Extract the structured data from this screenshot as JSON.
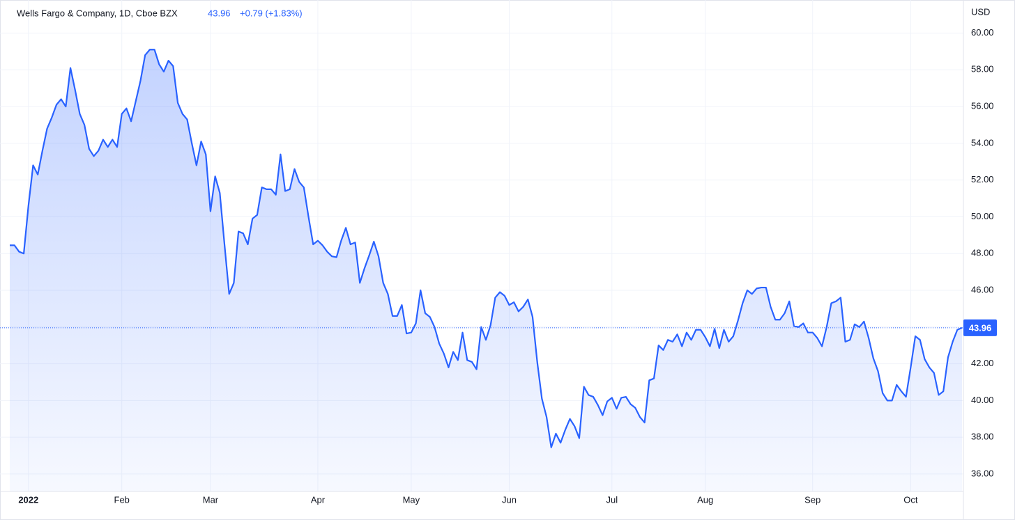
{
  "header": {
    "symbol": "Wells Fargo & Company, 1D, Cboe BZX",
    "price": "43.96",
    "change": "+0.79 (+1.83%)"
  },
  "chart_data": {
    "type": "area",
    "currency": "USD",
    "color": "#2962ff",
    "grid": true,
    "price_line_label": "43.96",
    "ylim": [
      35.05,
      61.8
    ],
    "yticks": [
      {
        "value": 36,
        "label": "36.00"
      },
      {
        "value": 38,
        "label": "38.00"
      },
      {
        "value": 40,
        "label": "40.00"
      },
      {
        "value": 42,
        "label": "42.00"
      },
      {
        "value": 44,
        "label": "44.00"
      },
      {
        "value": 46,
        "label": "46.00"
      },
      {
        "value": 48,
        "label": "48.00"
      },
      {
        "value": 50,
        "label": "50.00"
      },
      {
        "value": 52,
        "label": "52.00"
      },
      {
        "value": 54,
        "label": "54.00"
      },
      {
        "value": 56,
        "label": "56.00"
      },
      {
        "value": 58,
        "label": "58.00"
      },
      {
        "value": 60,
        "label": "60.00"
      }
    ],
    "categories": [
      null,
      null,
      null,
      null,
      "2022",
      null,
      null,
      null,
      null,
      null,
      null,
      null,
      null,
      null,
      null,
      null,
      null,
      null,
      null,
      null,
      null,
      null,
      null,
      null,
      "Feb",
      null,
      null,
      null,
      null,
      null,
      null,
      null,
      null,
      null,
      null,
      null,
      null,
      null,
      null,
      null,
      null,
      null,
      null,
      "Mar",
      null,
      null,
      null,
      null,
      null,
      null,
      null,
      null,
      null,
      null,
      null,
      null,
      null,
      null,
      null,
      null,
      null,
      null,
      null,
      null,
      null,
      null,
      "Apr",
      null,
      null,
      null,
      null,
      null,
      null,
      null,
      null,
      null,
      null,
      null,
      null,
      null,
      null,
      null,
      null,
      null,
      null,
      null,
      "May",
      null,
      null,
      null,
      null,
      null,
      null,
      null,
      null,
      null,
      null,
      null,
      null,
      null,
      null,
      null,
      null,
      null,
      null,
      null,
      null,
      "Jun",
      null,
      null,
      null,
      null,
      null,
      null,
      null,
      null,
      null,
      null,
      null,
      null,
      null,
      null,
      null,
      null,
      null,
      null,
      null,
      null,
      null,
      "Jul",
      null,
      null,
      null,
      null,
      null,
      null,
      null,
      null,
      null,
      null,
      null,
      null,
      null,
      null,
      null,
      null,
      null,
      null,
      null,
      "Aug",
      null,
      null,
      null,
      null,
      null,
      null,
      null,
      null,
      null,
      null,
      null,
      null,
      null,
      null,
      null,
      null,
      null,
      null,
      null,
      null,
      null,
      null,
      "Sep",
      null,
      null,
      null,
      null,
      null,
      null,
      null,
      null,
      null,
      null,
      null,
      null,
      null,
      null,
      null,
      null,
      null,
      null,
      null,
      null,
      "Oct",
      null,
      null,
      null,
      null,
      null,
      null,
      null,
      null,
      null,
      null,
      null
    ],
    "values": [
      48.45,
      48.45,
      48.1,
      48.0,
      50.6,
      52.8,
      52.3,
      53.6,
      54.8,
      55.4,
      56.1,
      56.4,
      56.0,
      58.1,
      56.9,
      55.6,
      55.0,
      53.7,
      53.3,
      53.6,
      54.2,
      53.8,
      54.2,
      53.8,
      55.6,
      55.9,
      55.2,
      56.3,
      57.4,
      58.8,
      59.1,
      59.1,
      58.3,
      57.9,
      58.5,
      58.2,
      56.2,
      55.6,
      55.3,
      54.0,
      52.8,
      54.1,
      53.4,
      50.3,
      52.2,
      51.3,
      48.5,
      45.8,
      46.4,
      49.2,
      49.1,
      48.5,
      49.9,
      50.1,
      51.6,
      51.5,
      51.5,
      51.2,
      53.4,
      51.4,
      51.5,
      52.6,
      51.9,
      51.6,
      50.0,
      48.5,
      48.7,
      48.45,
      48.1,
      47.85,
      47.8,
      48.7,
      49.4,
      48.5,
      48.6,
      46.4,
      47.2,
      47.9,
      48.65,
      47.85,
      46.4,
      45.8,
      44.6,
      44.6,
      45.2,
      43.65,
      43.7,
      44.2,
      46.0,
      44.75,
      44.55,
      44.0,
      43.1,
      42.55,
      41.8,
      42.65,
      42.2,
      43.7,
      42.2,
      42.1,
      41.7,
      44.0,
      43.3,
      44.1,
      45.6,
      45.9,
      45.7,
      45.2,
      45.35,
      44.85,
      45.1,
      45.5,
      44.55,
      42.1,
      40.1,
      39.1,
      37.45,
      38.2,
      37.7,
      38.4,
      39.0,
      38.6,
      37.95,
      40.75,
      40.3,
      40.2,
      39.75,
      39.2,
      39.95,
      40.15,
      39.55,
      40.15,
      40.2,
      39.8,
      39.6,
      39.1,
      38.8,
      41.1,
      41.2,
      43.0,
      42.75,
      43.3,
      43.2,
      43.6,
      42.95,
      43.7,
      43.3,
      43.85,
      43.85,
      43.45,
      42.95,
      43.9,
      42.85,
      43.85,
      43.2,
      43.5,
      44.35,
      45.3,
      46.0,
      45.8,
      46.1,
      46.15,
      46.15,
      45.1,
      44.4,
      44.4,
      44.75,
      45.4,
      44.05,
      44.0,
      44.2,
      43.7,
      43.7,
      43.4,
      42.95,
      44.0,
      45.3,
      45.4,
      45.6,
      43.2,
      43.3,
      44.15,
      44.0,
      44.3,
      43.4,
      42.3,
      41.6,
      40.4,
      40.0,
      40.0,
      40.85,
      40.5,
      40.2,
      41.8,
      43.5,
      43.3,
      42.25,
      41.8,
      41.5,
      40.3,
      40.5,
      42.35,
      43.2,
      43.85,
      43.96
    ]
  }
}
